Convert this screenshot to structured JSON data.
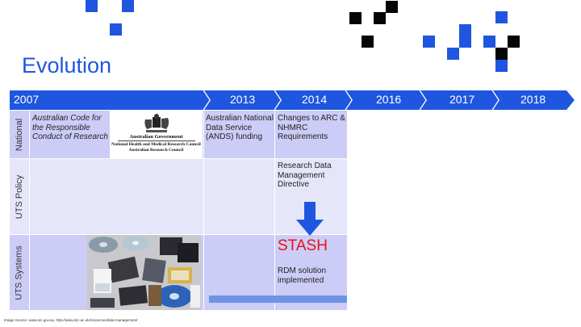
{
  "slide": {
    "title": "Evolution",
    "image_source": "Image Source: www.arc.gov.au, http://www.dcc.ac.uk/resources/data-management/"
  },
  "timeline": {
    "color": "#1f56e0",
    "years": [
      "2007",
      "2013",
      "2014",
      "2016",
      "2017",
      "2018"
    ]
  },
  "rows": [
    {
      "label": "National",
      "color": "#ccccf7"
    },
    {
      "label": "UTS Policy",
      "color": "#e6e6fa"
    },
    {
      "label": "UTS Systems",
      "color": "#ccccf7"
    }
  ],
  "national": {
    "code_text": "Australian Code for the Responsible Conduct of Research",
    "logo": {
      "line1": "Australian Government",
      "line2": "National Health and Medical Research Council",
      "line3": "Australian Research Council"
    },
    "ands_text": "Australian National Data Service (ANDS) funding",
    "arc_text": "Changes to ARC & NHMRC Requirements"
  },
  "policy": {
    "directive_text": "Research Data Management Directive"
  },
  "systems": {
    "stash_title": "STASH",
    "stash_text": "RDM solution implemented",
    "photo_icon": "storage-media-photo",
    "progress": 1.0,
    "progress_color": "#6f93e6"
  },
  "arrow": {
    "icon": "arrow-down-icon",
    "color": "#1f56e0"
  },
  "accent_colors": {
    "blue": "#1f56e0",
    "black": "#050505",
    "stash_red": "#ee1111"
  }
}
